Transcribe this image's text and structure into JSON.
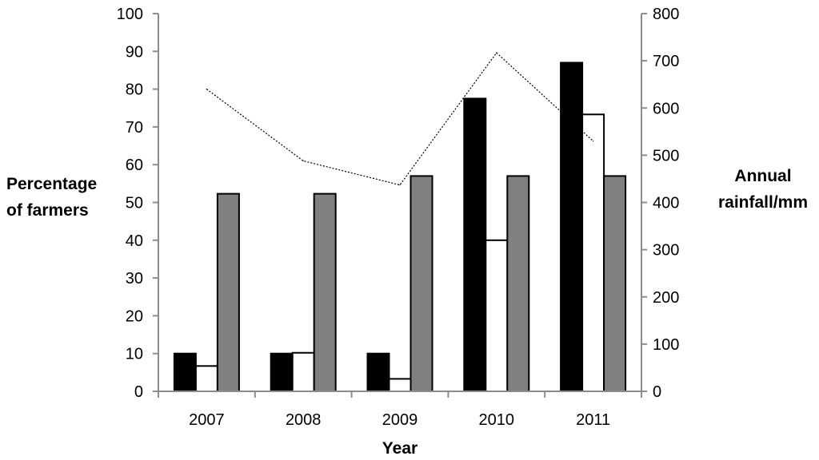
{
  "chart_data": {
    "type": "bar",
    "categories": [
      "2007",
      "2008",
      "2009",
      "2010",
      "2011"
    ],
    "series": [
      {
        "values": [
          10,
          10,
          10,
          77.5,
          87
        ],
        "color": "#000000"
      },
      {
        "values": [
          6.7,
          10.2,
          3.3,
          40,
          73.3
        ],
        "color": "#ffffff"
      },
      {
        "values": [
          52.3,
          52.3,
          57,
          57,
          57
        ],
        "color": "#808080"
      }
    ],
    "line_series": {
      "axis": "right",
      "style": "dotted",
      "values": [
        640,
        488,
        437,
        717,
        530
      ]
    },
    "xlabel": "Year",
    "ylabel_lines": [
      "Percentage",
      "of farmers"
    ],
    "y2label_lines": [
      "Annual",
      "rainfall/mm"
    ],
    "ylim": [
      0,
      100
    ],
    "y2lim": [
      0,
      800
    ],
    "yticks": [
      0,
      10,
      20,
      30,
      40,
      50,
      60,
      70,
      80,
      90,
      100
    ],
    "y2ticks": [
      0,
      100,
      200,
      300,
      400,
      500,
      600,
      700,
      800
    ],
    "grid": false,
    "legend": "none"
  }
}
